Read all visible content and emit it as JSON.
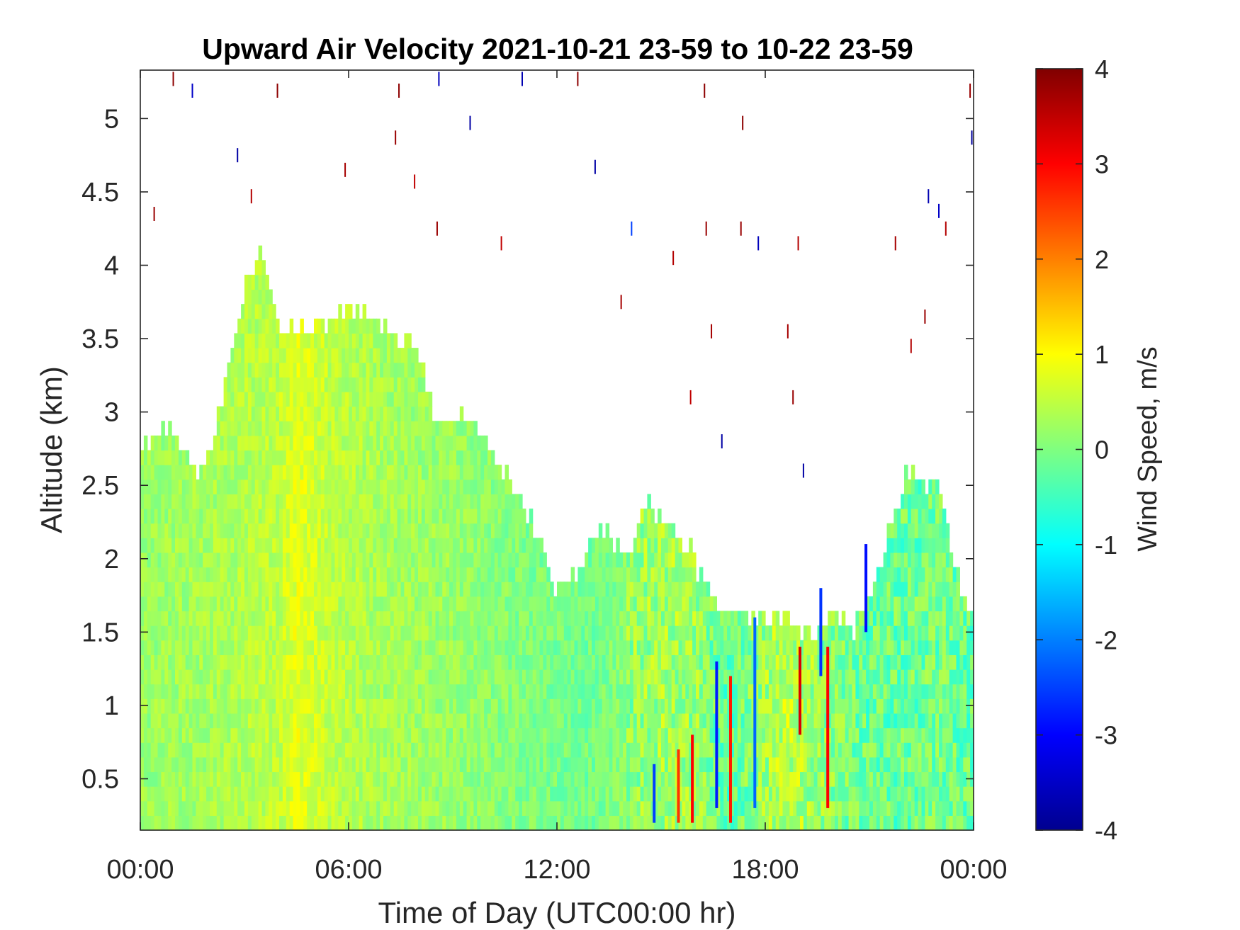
{
  "chart_data": {
    "type": "heatmap",
    "title": "Upward Air Velocity 2021-10-21 23-59 to 10-22 23-59",
    "xlabel": "Time of Day (UTC00:00 hr)",
    "ylabel": "Altitude (km)",
    "colorbar_label": "Wind Speed, m/s",
    "x_ticks": [
      "00:00",
      "06:00",
      "12:00",
      "18:00",
      "00:00"
    ],
    "x_tick_hours": [
      0,
      6,
      12,
      18,
      24
    ],
    "xlim_hours": [
      0,
      24
    ],
    "y_ticks": [
      0.5,
      1,
      1.5,
      2,
      2.5,
      3,
      3.5,
      4,
      4.5,
      5
    ],
    "y_tick_labels": [
      "0.5",
      "1",
      "1.5",
      "2",
      "2.5",
      "3",
      "3.5",
      "4",
      "4.5",
      "5"
    ],
    "ylim_km": [
      0.15,
      5.33
    ],
    "colorbar_ticks": [
      -4,
      -3,
      -2,
      -1,
      0,
      1,
      2,
      3,
      4
    ],
    "colorbar_tick_labels": [
      "-4",
      "-3",
      "-2",
      "-1",
      "0",
      "1",
      "2",
      "3",
      "4"
    ],
    "clim": [
      -4,
      4
    ],
    "colormap": "jet",
    "grid": false,
    "echo_top_km": [
      [
        0.0,
        2.7
      ],
      [
        0.5,
        2.9
      ],
      [
        1.0,
        2.85
      ],
      [
        1.5,
        2.6
      ],
      [
        2.0,
        2.7
      ],
      [
        2.5,
        3.2
      ],
      [
        3.0,
        3.85
      ],
      [
        3.5,
        4.1
      ],
      [
        4.0,
        3.6
      ],
      [
        5.0,
        3.6
      ],
      [
        6.0,
        3.7
      ],
      [
        7.0,
        3.6
      ],
      [
        8.0,
        3.4
      ],
      [
        8.5,
        2.95
      ],
      [
        9.5,
        2.95
      ],
      [
        10.5,
        2.6
      ],
      [
        11.0,
        2.4
      ],
      [
        11.5,
        2.1
      ],
      [
        12.0,
        1.8
      ],
      [
        12.5,
        1.9
      ],
      [
        13.0,
        2.15
      ],
      [
        13.5,
        2.2
      ],
      [
        14.0,
        2.0
      ],
      [
        14.5,
        2.4
      ],
      [
        15.5,
        2.2
      ],
      [
        16.5,
        1.75
      ],
      [
        17.0,
        1.7
      ],
      [
        17.5,
        1.6
      ],
      [
        18.5,
        1.6
      ],
      [
        19.5,
        1.5
      ],
      [
        20.0,
        1.7
      ],
      [
        20.5,
        1.5
      ],
      [
        21.0,
        1.8
      ],
      [
        21.5,
        2.1
      ],
      [
        22.0,
        2.55
      ],
      [
        23.0,
        2.5
      ],
      [
        23.5,
        1.9
      ],
      [
        24.0,
        1.6
      ]
    ],
    "velocity_profile_m_s": [
      [
        0.0,
        0.2
      ],
      [
        2.0,
        0.3
      ],
      [
        4.0,
        0.5
      ],
      [
        4.5,
        0.8
      ],
      [
        5.5,
        0.5
      ],
      [
        7.0,
        0.3
      ],
      [
        9.0,
        0.2
      ],
      [
        11.0,
        0.0
      ],
      [
        13.0,
        -0.1
      ],
      [
        15.0,
        0.3
      ],
      [
        16.0,
        0.2
      ],
      [
        17.0,
        -0.3
      ],
      [
        18.5,
        0.5
      ],
      [
        19.5,
        0.2
      ],
      [
        21.0,
        -0.2
      ],
      [
        23.0,
        -0.1
      ],
      [
        24.0,
        -0.2
      ]
    ],
    "strong_updrafts": [
      {
        "hour": 15.5,
        "alt_range_km": [
          0.2,
          0.7
        ],
        "value_m_s": 2.6
      },
      {
        "hour": 15.9,
        "alt_range_km": [
          0.2,
          0.8
        ],
        "value_m_s": 3.0
      },
      {
        "hour": 17.0,
        "alt_range_km": [
          0.2,
          1.2
        ],
        "value_m_s": 2.8
      },
      {
        "hour": 19.0,
        "alt_range_km": [
          0.8,
          1.4
        ],
        "value_m_s": 3.3
      },
      {
        "hour": 19.8,
        "alt_range_km": [
          0.3,
          1.4
        ],
        "value_m_s": 3.0
      }
    ],
    "strong_downdrafts": [
      {
        "hour": 14.8,
        "alt_range_km": [
          0.2,
          0.6
        ],
        "value_m_s": -2.5
      },
      {
        "hour": 16.6,
        "alt_range_km": [
          0.3,
          1.3
        ],
        "value_m_s": -2.8
      },
      {
        "hour": 17.7,
        "alt_range_km": [
          0.3,
          1.6
        ],
        "value_m_s": -2.2
      },
      {
        "hour": 19.6,
        "alt_range_km": [
          1.2,
          1.8
        ],
        "value_m_s": -2.6
      },
      {
        "hour": 20.9,
        "alt_range_km": [
          1.5,
          2.1
        ],
        "value_m_s": -2.9
      }
    ],
    "isolated_returns": [
      {
        "hour": 0.4,
        "alt_km": 4.35,
        "value_m_s": 3.8
      },
      {
        "hour": 0.95,
        "alt_km": 5.27,
        "value_m_s": 3.9
      },
      {
        "hour": 1.5,
        "alt_km": 5.19,
        "value_m_s": -3.5
      },
      {
        "hour": 2.8,
        "alt_km": 4.75,
        "value_m_s": -3.8
      },
      {
        "hour": 3.2,
        "alt_km": 4.47,
        "value_m_s": 3.6
      },
      {
        "hour": 3.95,
        "alt_km": 5.19,
        "value_m_s": 3.9
      },
      {
        "hour": 5.9,
        "alt_km": 4.65,
        "value_m_s": 3.7
      },
      {
        "hour": 7.35,
        "alt_km": 4.87,
        "value_m_s": 3.8
      },
      {
        "hour": 7.45,
        "alt_km": 5.19,
        "value_m_s": 3.9
      },
      {
        "hour": 7.9,
        "alt_km": 4.57,
        "value_m_s": 3.5
      },
      {
        "hour": 8.55,
        "alt_km": 4.25,
        "value_m_s": 3.8
      },
      {
        "hour": 8.6,
        "alt_km": 5.27,
        "value_m_s": -3.6
      },
      {
        "hour": 9.5,
        "alt_km": 4.97,
        "value_m_s": -3.8
      },
      {
        "hour": 10.4,
        "alt_km": 4.15,
        "value_m_s": 3.5
      },
      {
        "hour": 11.0,
        "alt_km": 5.27,
        "value_m_s": -3.7
      },
      {
        "hour": 12.6,
        "alt_km": 5.27,
        "value_m_s": 3.9
      },
      {
        "hour": 13.1,
        "alt_km": 4.67,
        "value_m_s": -3.8
      },
      {
        "hour": 13.85,
        "alt_km": 3.75,
        "value_m_s": 3.7
      },
      {
        "hour": 14.15,
        "alt_km": 4.25,
        "value_m_s": -2.5
      },
      {
        "hour": 15.35,
        "alt_km": 4.05,
        "value_m_s": 3.6
      },
      {
        "hour": 15.85,
        "alt_km": 3.1,
        "value_m_s": 3.5
      },
      {
        "hour": 16.3,
        "alt_km": 4.25,
        "value_m_s": 3.8
      },
      {
        "hour": 16.25,
        "alt_km": 5.19,
        "value_m_s": 3.9
      },
      {
        "hour": 16.45,
        "alt_km": 3.55,
        "value_m_s": 3.7
      },
      {
        "hour": 16.75,
        "alt_km": 2.8,
        "value_m_s": -3.8
      },
      {
        "hour": 17.3,
        "alt_km": 4.25,
        "value_m_s": 3.8
      },
      {
        "hour": 17.35,
        "alt_km": 4.97,
        "value_m_s": 3.9
      },
      {
        "hour": 17.8,
        "alt_km": 4.15,
        "value_m_s": -3.6
      },
      {
        "hour": 18.65,
        "alt_km": 3.55,
        "value_m_s": 3.7
      },
      {
        "hour": 18.8,
        "alt_km": 3.1,
        "value_m_s": 3.8
      },
      {
        "hour": 18.95,
        "alt_km": 4.15,
        "value_m_s": 3.6
      },
      {
        "hour": 19.1,
        "alt_km": 2.6,
        "value_m_s": -3.8
      },
      {
        "hour": 21.75,
        "alt_km": 4.15,
        "value_m_s": 3.7
      },
      {
        "hour": 22.2,
        "alt_km": 3.45,
        "value_m_s": 3.6
      },
      {
        "hour": 22.6,
        "alt_km": 3.65,
        "value_m_s": 3.8
      },
      {
        "hour": 22.7,
        "alt_km": 4.47,
        "value_m_s": -3.7
      },
      {
        "hour": 23.0,
        "alt_km": 4.37,
        "value_m_s": -3.5
      },
      {
        "hour": 23.2,
        "alt_km": 4.25,
        "value_m_s": 3.6
      },
      {
        "hour": 23.9,
        "alt_km": 5.19,
        "value_m_s": 3.8
      },
      {
        "hour": 23.95,
        "alt_km": 4.87,
        "value_m_s": -3.9
      }
    ]
  }
}
